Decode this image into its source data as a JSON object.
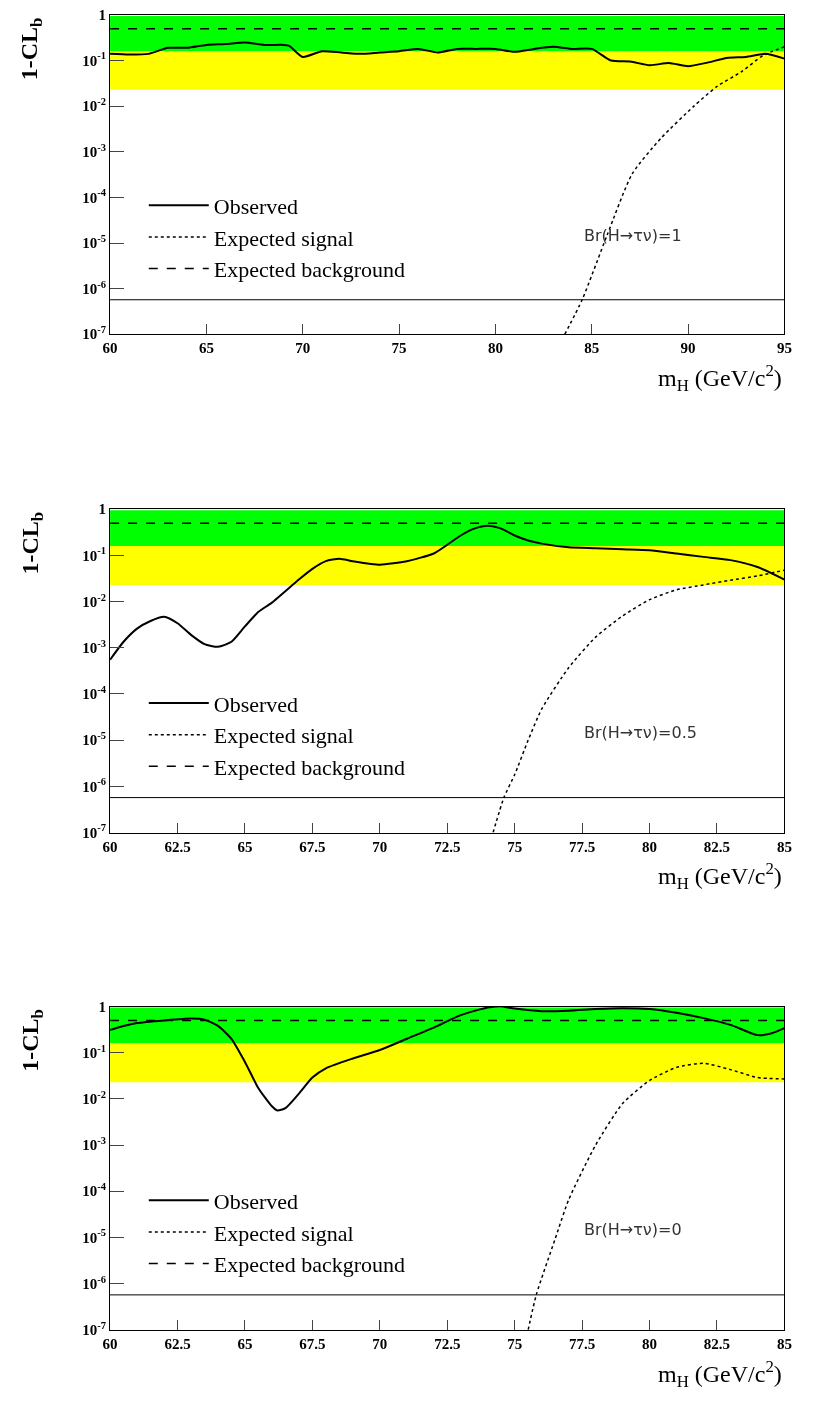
{
  "chart_data": [
    {
      "type": "line",
      "xlabel": "m$_{H}$ (GeV/c$^{2}$)",
      "ylabel": "1-CL$_{b}$",
      "log": "y",
      "legend": "bottom left",
      "grid": false,
      "xlim": [
        60,
        95
      ],
      "xticks": [
        60,
        65,
        70,
        75,
        80,
        85,
        90,
        95
      ],
      "ylim": [
        1e-07,
        1
      ],
      "yticks": [
        {
          "value": 1e-07,
          "label": "10$^{-7}$"
        },
        {
          "value": 1e-06,
          "label": "10$^{-6}$"
        },
        {
          "value": 1e-05,
          "label": "10$^{-5}$"
        },
        {
          "value": 0.0001,
          "label": "10$^{-4}$"
        },
        {
          "value": 0.001,
          "label": "10$^{-3}$"
        },
        {
          "value": 0.01,
          "label": "10$^{-2}$"
        },
        {
          "value": 0.1,
          "label": "10$^{-1}$"
        },
        1
      ],
      "bands": [
        {
          "axis": "y",
          "from": 0.023,
          "to": 0.16,
          "color": "#ffff00"
        },
        {
          "axis": "y",
          "from": 0.16,
          "to": 0.95,
          "color": "#00ff00"
        }
      ],
      "ref_lines": [
        {
          "axis": "y",
          "value": 5.7e-07,
          "color": "#000000",
          "line_style": "solid"
        }
      ],
      "annotations": [
        "Br(H→τν)=1"
      ],
      "series": [
        {
          "name": "Observed",
          "color": "#000000",
          "line_style": "solid",
          "x": [
            60,
            61,
            62,
            63,
            64,
            65,
            66,
            67,
            68,
            69,
            69.3,
            70,
            71,
            72,
            73,
            74,
            75,
            76,
            77,
            78,
            79,
            80,
            81,
            82,
            83,
            84,
            85,
            86,
            87,
            88,
            89,
            90,
            91,
            92,
            93,
            94,
            95
          ],
          "values": [
            0.14,
            0.135,
            0.14,
            0.19,
            0.19,
            0.22,
            0.23,
            0.25,
            0.22,
            0.22,
            0.21,
            0.12,
            0.16,
            0.15,
            0.14,
            0.15,
            0.16,
            0.18,
            0.15,
            0.18,
            0.18,
            0.18,
            0.155,
            0.18,
            0.2,
            0.18,
            0.18,
            0.1,
            0.095,
            0.079,
            0.088,
            0.075,
            0.09,
            0.114,
            0.12,
            0.14,
            0.11
          ]
        },
        {
          "name": "Expected signal",
          "color": "#000000",
          "line_style": "dotted",
          "x": [
            83.6,
            84.5,
            85.8,
            87.1,
            88.6,
            90.3,
            91.5,
            92.8,
            93.9,
            95
          ],
          "values": [
            1e-07,
            5.7e-07,
            1.5e-05,
            0.00033,
            0.002,
            0.01,
            0.027,
            0.058,
            0.13,
            0.2
          ]
        },
        {
          "name": "Expected background",
          "color": "#000000",
          "line_style": "dashed",
          "x": [
            60,
            95
          ],
          "values": [
            0.5,
            0.5
          ]
        }
      ]
    },
    {
      "type": "line",
      "xlabel": "m$_{H}$ (GeV/c$^{2}$)",
      "ylabel": "1-CL$_{b}$",
      "log": "y",
      "legend": "bottom left",
      "grid": false,
      "xlim": [
        60,
        85
      ],
      "xticks": [
        60,
        62.5,
        65,
        67.5,
        70,
        72.5,
        75,
        77.5,
        80,
        82.5,
        85
      ],
      "ylim": [
        1e-07,
        1
      ],
      "yticks": [
        {
          "value": 1e-07,
          "label": "10$^{-7}$"
        },
        {
          "value": 1e-06,
          "label": "10$^{-6}$"
        },
        {
          "value": 1e-05,
          "label": "10$^{-5}$"
        },
        {
          "value": 0.0001,
          "label": "10$^{-4}$"
        },
        {
          "value": 0.001,
          "label": "10$^{-3}$"
        },
        {
          "value": 0.01,
          "label": "10$^{-2}$"
        },
        {
          "value": 0.1,
          "label": "10$^{-1}$"
        },
        1
      ],
      "bands": [
        {
          "axis": "y",
          "from": 0.023,
          "to": 0.16,
          "color": "#ffff00"
        },
        {
          "axis": "y",
          "from": 0.16,
          "to": 0.95,
          "color": "#00ff00"
        }
      ],
      "ref_lines": [
        {
          "axis": "y",
          "value": 5.7e-07,
          "color": "#000000",
          "line_style": "solid"
        }
      ],
      "annotations": [
        "Br(H→τν)=0.5"
      ],
      "series": [
        {
          "name": "Observed",
          "color": "#000000",
          "line_style": "solid",
          "x": [
            60,
            60.5,
            61,
            61.5,
            62,
            62.5,
            63,
            63.5,
            64,
            64.5,
            65,
            65.5,
            66,
            67,
            67.5,
            68,
            68.5,
            69,
            70,
            71,
            72,
            72.5,
            73,
            73.5,
            74,
            74.5,
            75,
            75.5,
            76,
            77,
            78,
            79,
            80,
            81,
            82,
            83,
            84,
            85
          ],
          "values": [
            0.00055,
            0.00135,
            0.0026,
            0.0038,
            0.0047,
            0.0034,
            0.0019,
            0.0012,
            0.00105,
            0.00135,
            0.0029,
            0.006,
            0.0095,
            0.03,
            0.051,
            0.075,
            0.085,
            0.075,
            0.063,
            0.075,
            0.11,
            0.17,
            0.27,
            0.38,
            0.44,
            0.38,
            0.27,
            0.21,
            0.18,
            0.15,
            0.143,
            0.136,
            0.13,
            0.11,
            0.093,
            0.079,
            0.056,
            0.03
          ]
        },
        {
          "name": "Expected signal",
          "color": "#000000",
          "line_style": "dotted",
          "x": [
            74.2,
            74.6,
            75,
            75.5,
            76,
            77,
            78,
            79,
            80,
            81,
            82,
            83,
            84,
            85
          ],
          "values": [
            1e-07,
            5.7e-07,
            1.8e-06,
            1e-05,
            4.7e-05,
            0.00037,
            0.0017,
            0.0049,
            0.011,
            0.018,
            0.023,
            0.029,
            0.036,
            0.048
          ]
        },
        {
          "name": "Expected background",
          "color": "#000000",
          "line_style": "dashed",
          "x": [
            60,
            85
          ],
          "values": [
            0.5,
            0.5
          ]
        }
      ]
    },
    {
      "type": "line",
      "xlabel": "m$_{H}$ (GeV/c$^{2}$)",
      "ylabel": "1-CL$_{b}$",
      "log": "y",
      "legend": "bottom left",
      "grid": false,
      "xlim": [
        60,
        85
      ],
      "xticks": [
        60,
        62.5,
        65,
        67.5,
        70,
        72.5,
        75,
        77.5,
        80,
        82.5,
        85
      ],
      "ylim": [
        1e-07,
        1
      ],
      "yticks": [
        {
          "value": 1e-07,
          "label": "10$^{-7}$"
        },
        {
          "value": 1e-06,
          "label": "10$^{-6}$"
        },
        {
          "value": 1e-05,
          "label": "10$^{-5}$"
        },
        {
          "value": 0.0001,
          "label": "10$^{-4}$"
        },
        {
          "value": 0.001,
          "label": "10$^{-3}$"
        },
        {
          "value": 0.01,
          "label": "10$^{-2}$"
        },
        {
          "value": 0.1,
          "label": "10$^{-1}$"
        },
        1
      ],
      "bands": [
        {
          "axis": "y",
          "from": 0.023,
          "to": 0.16,
          "color": "#ffff00"
        },
        {
          "axis": "y",
          "from": 0.16,
          "to": 0.95,
          "color": "#00ff00"
        }
      ],
      "ref_lines": [
        {
          "axis": "y",
          "value": 5.7e-07,
          "color": "#000000",
          "line_style": "solid"
        }
      ],
      "annotations": [
        "Br(H→τν)=0"
      ],
      "series": [
        {
          "name": "Observed",
          "color": "#000000",
          "line_style": "solid",
          "x": [
            60,
            60.5,
            61,
            62,
            63,
            63.5,
            64,
            64.5,
            65,
            65.5,
            66,
            66.2,
            66.5,
            67,
            67.5,
            68,
            69,
            70,
            71,
            72,
            73,
            74,
            74.5,
            75,
            76,
            77,
            78,
            79,
            80,
            81,
            82,
            83,
            84,
            84.5,
            85
          ],
          "values": [
            0.31,
            0.38,
            0.44,
            0.5,
            0.55,
            0.52,
            0.38,
            0.2,
            0.063,
            0.017,
            0.0069,
            0.0056,
            0.0063,
            0.013,
            0.029,
            0.046,
            0.075,
            0.114,
            0.2,
            0.35,
            0.65,
            0.95,
            1,
            0.9,
            0.79,
            0.81,
            0.88,
            0.92,
            0.88,
            0.73,
            0.56,
            0.4,
            0.24,
            0.26,
            0.34
          ]
        },
        {
          "name": "Expected signal",
          "color": "#000000",
          "line_style": "dotted",
          "x": [
            75.5,
            75.8,
            76.5,
            77,
            78,
            79,
            80,
            81,
            82,
            83,
            84,
            85
          ],
          "values": [
            1e-07,
            5.7e-07,
            9.3e-06,
            6.5e-05,
            0.001,
            0.0079,
            0.025,
            0.048,
            0.059,
            0.043,
            0.029,
            0.027
          ]
        },
        {
          "name": "Expected background",
          "color": "#000000",
          "line_style": "dashed",
          "x": [
            60,
            85
          ],
          "values": [
            0.5,
            0.5
          ]
        }
      ]
    }
  ]
}
